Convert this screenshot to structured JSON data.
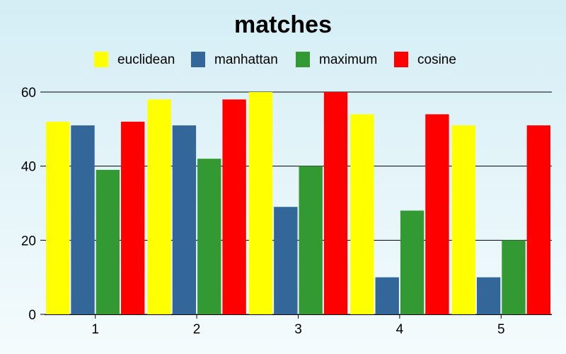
{
  "chart_data": {
    "type": "bar",
    "title": "matches",
    "categories": [
      "1",
      "2",
      "3",
      "4",
      "5"
    ],
    "series": [
      {
        "name": "euclidean",
        "color": "#ffff00",
        "values": [
          52,
          58,
          60,
          54,
          51
        ]
      },
      {
        "name": "manhattan",
        "color": "#336699",
        "values": [
          51,
          51,
          29,
          10,
          10
        ]
      },
      {
        "name": "maximum",
        "color": "#339933",
        "values": [
          39,
          42,
          40,
          28,
          20
        ]
      },
      {
        "name": "cosine",
        "color": "#ff0000",
        "values": [
          52,
          58,
          60,
          54,
          51
        ]
      }
    ],
    "xlabel": "",
    "ylabel": "",
    "ylim": [
      0,
      60
    ],
    "yticks": [
      "0",
      "20",
      "40",
      "60"
    ],
    "grid": "horizontal",
    "legend_position": "top-center",
    "background_gradient": [
      "#d4eef5",
      "#f4fbfd"
    ]
  }
}
